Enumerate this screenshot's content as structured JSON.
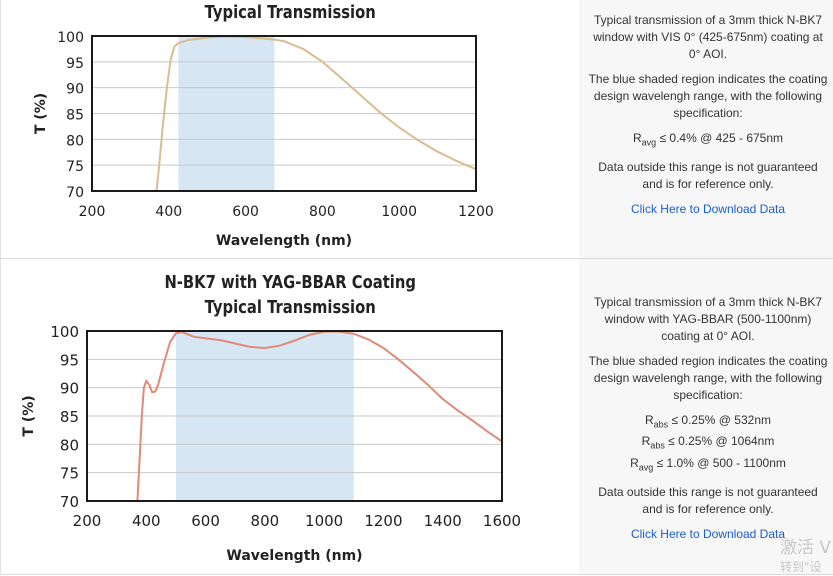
{
  "chart_data": [
    {
      "type": "line",
      "title": "Typical Transmission",
      "xlabel": "Wavelength (nm)",
      "ylabel": "T (%)",
      "xlim": [
        200,
        1200
      ],
      "ylim": [
        70,
        100
      ],
      "xticks": [
        "200",
        "400",
        "600",
        "800",
        "1000",
        "1200"
      ],
      "yticks": [
        "70",
        "75",
        "80",
        "85",
        "90",
        "95",
        "100"
      ],
      "shaded_region": [
        425,
        675
      ],
      "grid": true,
      "series": [
        {
          "color": "#d9bc8f",
          "x": [
            368,
            375,
            385,
            395,
            405,
            415,
            425,
            450,
            500,
            550,
            600,
            650,
            675,
            700,
            750,
            800,
            850,
            900,
            950,
            1000,
            1050,
            1100,
            1150,
            1200
          ],
          "y": [
            70,
            75,
            83,
            90,
            95.5,
            98,
            98.6,
            99.2,
            99.7,
            99.9,
            99.8,
            99.5,
            99.3,
            99,
            97.5,
            95,
            91.8,
            88.5,
            85.2,
            82.3,
            79.8,
            77.6,
            75.8,
            74.2
          ]
        }
      ]
    },
    {
      "type": "line",
      "title_line1": "N-BK7 with YAG-BBAR Coating",
      "title_line2": "Typical Transmission",
      "xlabel": "Wavelength (nm)",
      "ylabel": "T (%)",
      "xlim": [
        200,
        1600
      ],
      "ylim": [
        70,
        100
      ],
      "xticks": [
        "200",
        "400",
        "600",
        "800",
        "1000",
        "1200",
        "1400",
        "1600"
      ],
      "yticks": [
        "70",
        "75",
        "80",
        "85",
        "90",
        "95",
        "100"
      ],
      "shaded_region": [
        500,
        1100
      ],
      "grid": true,
      "series": [
        {
          "color": "#e08a78",
          "x": [
            370,
            378,
            385,
            392,
            400,
            410,
            420,
            430,
            440,
            460,
            480,
            500,
            520,
            560,
            600,
            650,
            700,
            750,
            800,
            850,
            900,
            950,
            1000,
            1050,
            1100,
            1150,
            1200,
            1250,
            1300,
            1350,
            1400,
            1450,
            1500,
            1550,
            1600
          ],
          "y": [
            70,
            78,
            85,
            90,
            91.2,
            90.5,
            89.2,
            89.3,
            90.5,
            94.5,
            98,
            99.6,
            99.8,
            99,
            98.7,
            98.4,
            97.8,
            97.2,
            97,
            97.4,
            98.3,
            99.3,
            99.9,
            99.9,
            99.5,
            98.5,
            97,
            95,
            92.8,
            90.5,
            88,
            86,
            84.2,
            82.3,
            80.5
          ]
        }
      ]
    }
  ],
  "descriptions": [
    {
      "para1": "Typical transmission of a 3mm thick N-BK7 window with VIS 0° (425-675nm) coating at 0° AOI.",
      "para2": "The blue shaded region indicates the coating design wavelengh range, with the following specification:",
      "specs": [
        {
          "sym": "R",
          "sub": "avg",
          "rest": " ≤ 0.4% @ 425 - 675nm"
        }
      ],
      "para3": "Data outside this range is not guaranteed and is for reference only.",
      "link": "Click Here to Download Data"
    },
    {
      "para1": "Typical transmission of a 3mm thick N-BK7 window with YAG-BBAR (500-1100nm) coating at 0° AOI.",
      "para2": "The blue shaded region indicates the coating design wavelengh range, with the following specification:",
      "specs": [
        {
          "sym": "R",
          "sub": "abs",
          "rest": " ≤ 0.25% @ 532nm"
        },
        {
          "sym": "R",
          "sub": "abs",
          "rest": " ≤ 0.25% @ 1064nm"
        },
        {
          "sym": "R",
          "sub": "avg",
          "rest": " ≤ 1.0% @ 500 - 1100nm"
        }
      ],
      "para3": "Data outside this range is not guaranteed and is for reference only.",
      "link": "Click Here to Download Data"
    }
  ],
  "watermark": {
    "line1": "激活 V",
    "line2": "转到\"设"
  }
}
